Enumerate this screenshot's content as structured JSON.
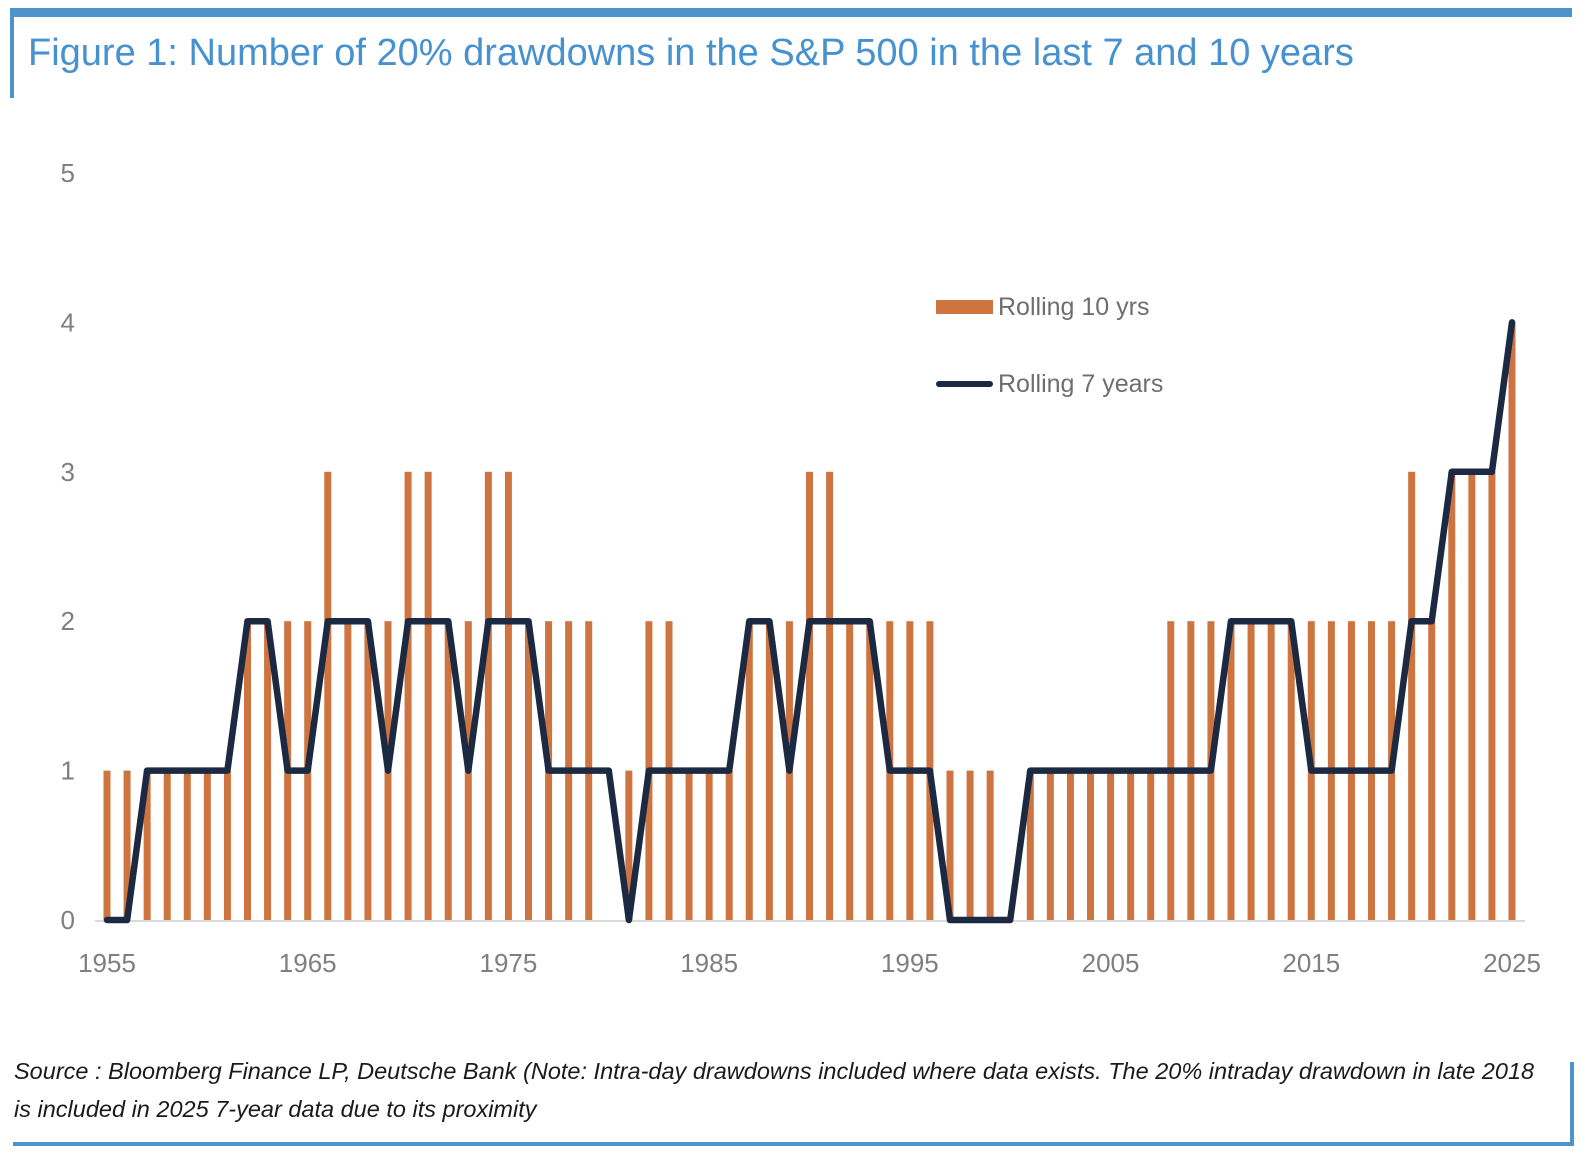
{
  "header": {
    "title": "Figure 1: Number of 20% drawdowns in the S&P 500 in the last 7 and 10 years"
  },
  "legend": {
    "bar_label": "Rolling 10 yrs",
    "line_label": "Rolling 7 years"
  },
  "footer": {
    "source_text": "Source : Bloomberg Finance LP, Deutsche Bank (Note: Intra-day drawdowns included where data exists. The 20% intraday drawdown in late 2018 is included in 2025 7-year data due to its proximity"
  },
  "colors": {
    "bar": "#CE7440",
    "line": "#1B2A42",
    "accent_blue": "#4D94CC",
    "axis_label_gray": "#7F7F7F",
    "baseline_gray": "#D9D9D9",
    "legend_text_gray": "#6E6E6E"
  },
  "chart_data": {
    "type": "bar",
    "title": "Number of 20% drawdowns in the S&P 500 in the last 7 and 10 years",
    "x": [
      1955,
      1956,
      1957,
      1958,
      1959,
      1960,
      1961,
      1962,
      1963,
      1964,
      1965,
      1966,
      1967,
      1968,
      1969,
      1970,
      1971,
      1972,
      1973,
      1974,
      1975,
      1976,
      1977,
      1978,
      1979,
      1980,
      1981,
      1982,
      1983,
      1984,
      1985,
      1986,
      1987,
      1988,
      1989,
      1990,
      1991,
      1992,
      1993,
      1994,
      1995,
      1996,
      1997,
      1998,
      1999,
      2000,
      2001,
      2002,
      2003,
      2004,
      2005,
      2006,
      2007,
      2008,
      2009,
      2010,
      2011,
      2012,
      2013,
      2014,
      2015,
      2016,
      2017,
      2018,
      2019,
      2020,
      2021,
      2022,
      2023,
      2024,
      2025
    ],
    "series": [
      {
        "name": "Rolling 10 yrs",
        "type": "bar",
        "color": "#CE7440",
        "values": [
          1,
          1,
          1,
          1,
          1,
          1,
          1,
          2,
          2,
          2,
          2,
          3,
          2,
          2,
          2,
          3,
          3,
          2,
          2,
          3,
          3,
          2,
          2,
          2,
          2,
          0,
          1,
          2,
          2,
          1,
          1,
          1,
          2,
          2,
          2,
          3,
          3,
          2,
          2,
          2,
          2,
          2,
          1,
          1,
          1,
          0,
          1,
          1,
          1,
          1,
          1,
          1,
          1,
          2,
          2,
          2,
          2,
          2,
          2,
          2,
          2,
          2,
          2,
          2,
          2,
          3,
          2,
          3,
          3,
          3,
          4
        ]
      },
      {
        "name": "Rolling 7 years",
        "type": "line",
        "color": "#1B2A42",
        "values": [
          0,
          0,
          1,
          1,
          1,
          1,
          1,
          2,
          2,
          1,
          1,
          2,
          2,
          2,
          1,
          2,
          2,
          2,
          1,
          2,
          2,
          2,
          1,
          1,
          1,
          1,
          0,
          1,
          1,
          1,
          1,
          1,
          2,
          2,
          1,
          2,
          2,
          2,
          2,
          1,
          1,
          1,
          0,
          0,
          0,
          0,
          1,
          1,
          1,
          1,
          1,
          1,
          1,
          1,
          1,
          1,
          2,
          2,
          2,
          2,
          1,
          1,
          1,
          1,
          1,
          2,
          2,
          3,
          3,
          3,
          4
        ]
      }
    ],
    "xlabel": "",
    "ylabel": "",
    "ylim": [
      0,
      5
    ],
    "yticks": [
      0,
      1,
      2,
      3,
      4,
      5
    ],
    "xticks": [
      1955,
      1965,
      1975,
      1985,
      1995,
      2005,
      2015,
      2025
    ],
    "grid": false,
    "legend_position": "inside-upper-right"
  }
}
